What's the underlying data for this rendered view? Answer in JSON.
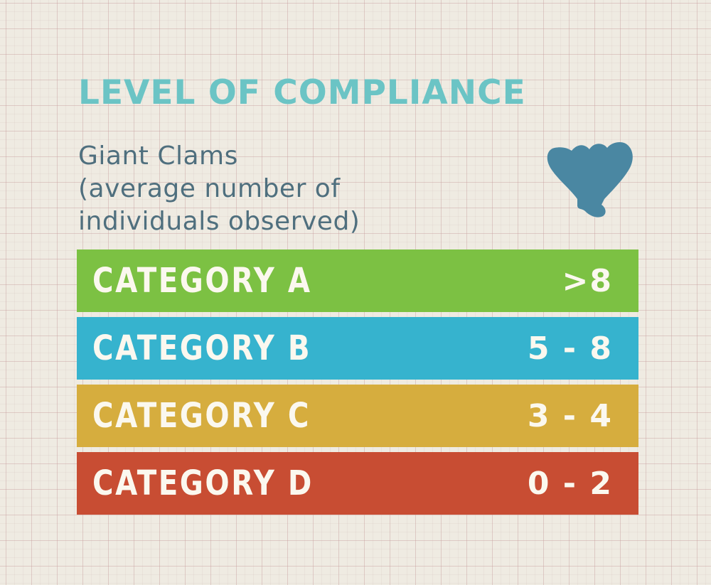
{
  "header": {
    "title": "LEVEL OF COMPLIANCE",
    "subtitle_lines": [
      "Giant Clams",
      "(average number of",
      "individuals observed)"
    ]
  },
  "icon": {
    "name": "giant-clam-icon",
    "color": "#4a87a2"
  },
  "categories": [
    {
      "label": "CATEGORY A",
      "value": ">8",
      "color": "#7cc143"
    },
    {
      "label": "CATEGORY B",
      "value": "5 - 8",
      "color": "#36b3ce"
    },
    {
      "label": "CATEGORY C",
      "value": "3 - 4",
      "color": "#d6ad3e"
    },
    {
      "label": "CATEGORY D",
      "value": "0 - 2",
      "color": "#c84d33"
    }
  ],
  "colors": {
    "background": "#efebe2",
    "title": "#6bc4c5",
    "subtitle": "#4f6f7e",
    "row_text": "#fbf8ef"
  }
}
